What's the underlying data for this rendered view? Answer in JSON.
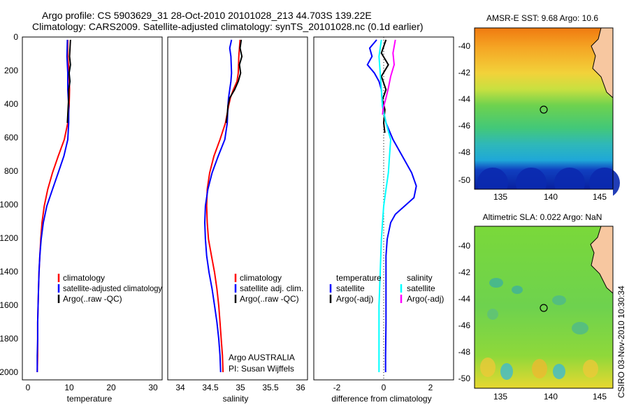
{
  "titles": {
    "line1": "Argo profile: CS 5903629_31 28-Oct-2010 20101028_213 44.703S 139.22E",
    "line2": "Climatology: CARS2009. Satellite-adjusted climatology: synTS_20101028.nc (0.1d earlier)"
  },
  "colors": {
    "climatology": "#ff0000",
    "satellite": "#0000ff",
    "argo": "#000000",
    "sat_salinity": "#00ffff",
    "argo_salinity": "#ff00ff"
  },
  "chart_data": [
    {
      "type": "line",
      "id": "temperature",
      "xlabel": "temperature",
      "xlim": [
        -1,
        31
      ],
      "xticks": [
        0,
        10,
        20,
        30
      ],
      "ylim": [
        2000,
        0
      ],
      "yticks": [
        0,
        200,
        400,
        600,
        800,
        1000,
        1200,
        1400,
        1600,
        1800,
        2000
      ],
      "legend_entries": [
        "climatology",
        "satellite-adjusted climatology",
        "Argo(..raw -QC)"
      ],
      "series": [
        {
          "name": "climatology",
          "color": "climatology",
          "points": [
            [
              9.4,
              0
            ],
            [
              9.4,
              100
            ],
            [
              9.7,
              200
            ],
            [
              9.8,
              300
            ],
            [
              9.7,
              400
            ],
            [
              9.4,
              500
            ],
            [
              8.6,
              600
            ],
            [
              7.2,
              700
            ],
            [
              5.9,
              800
            ],
            [
              4.8,
              900
            ],
            [
              4.0,
              1000
            ],
            [
              3.5,
              1100
            ],
            [
              3.2,
              1200
            ],
            [
              3.0,
              1300
            ],
            [
              2.8,
              1400
            ],
            [
              2.7,
              1500
            ],
            [
              2.6,
              1600
            ],
            [
              2.5,
              1700
            ],
            [
              2.5,
              1800
            ],
            [
              2.5,
              1900
            ],
            [
              2.4,
              2000
            ]
          ]
        },
        {
          "name": "satellite-adjusted climatology",
          "color": "satellite",
          "points": [
            [
              9.3,
              0
            ],
            [
              9.2,
              100
            ],
            [
              9.4,
              200
            ],
            [
              9.4,
              300
            ],
            [
              9.6,
              400
            ],
            [
              9.6,
              500
            ],
            [
              9.4,
              600
            ],
            [
              8.5,
              700
            ],
            [
              7.2,
              800
            ],
            [
              5.9,
              900
            ],
            [
              4.6,
              1000
            ],
            [
              3.8,
              1100
            ],
            [
              3.3,
              1200
            ],
            [
              3.0,
              1300
            ],
            [
              2.8,
              1400
            ],
            [
              2.7,
              1500
            ],
            [
              2.6,
              1600
            ],
            [
              2.5,
              1700
            ],
            [
              2.5,
              1800
            ],
            [
              2.4,
              1900
            ],
            [
              2.4,
              2000
            ]
          ]
        },
        {
          "name": "Argo(..raw -QC)",
          "color": "argo",
          "points": [
            [
              10.0,
              0
            ],
            [
              9.8,
              100
            ],
            [
              10.0,
              150
            ],
            [
              9.7,
              200
            ],
            [
              9.9,
              250
            ],
            [
              9.6,
              300
            ],
            [
              9.6,
              350
            ],
            [
              9.5,
              400
            ],
            [
              9.4,
              450
            ],
            [
              9.3,
              500
            ]
          ]
        }
      ]
    },
    {
      "type": "line",
      "id": "salinity",
      "xlabel": "salinity",
      "xlim": [
        33.8,
        36.1
      ],
      "xticks": [
        34,
        34.5,
        35,
        35.5,
        36
      ],
      "ylim": [
        2000,
        0
      ],
      "legend_entries": [
        "climatology",
        "satellite adj. clim.",
        "Argo(..raw -QC)"
      ],
      "annotation": [
        "Argo AUSTRALIA",
        "PI: Susan Wijffels"
      ],
      "series": [
        {
          "name": "climatology",
          "color": "climatology",
          "points": [
            [
              34.99,
              0
            ],
            [
              34.97,
              100
            ],
            [
              34.96,
              200
            ],
            [
              34.94,
              250
            ],
            [
              34.88,
              300
            ],
            [
              34.83,
              350
            ],
            [
              34.8,
              400
            ],
            [
              34.75,
              500
            ],
            [
              34.66,
              600
            ],
            [
              34.56,
              700
            ],
            [
              34.49,
              800
            ],
            [
              34.45,
              900
            ],
            [
              34.44,
              1000
            ],
            [
              34.45,
              1100
            ],
            [
              34.47,
              1200
            ],
            [
              34.52,
              1300
            ],
            [
              34.57,
              1400
            ],
            [
              34.61,
              1500
            ],
            [
              34.64,
              1600
            ],
            [
              34.66,
              1700
            ],
            [
              34.68,
              1800
            ],
            [
              34.7,
              1900
            ],
            [
              34.71,
              2000
            ]
          ]
        },
        {
          "name": "satellite adj. clim.",
          "color": "satellite",
          "points": [
            [
              34.85,
              0
            ],
            [
              34.82,
              50
            ],
            [
              34.84,
              100
            ],
            [
              34.85,
              200
            ],
            [
              34.84,
              250
            ],
            [
              34.82,
              300
            ],
            [
              34.8,
              350
            ],
            [
              34.79,
              400
            ],
            [
              34.78,
              500
            ],
            [
              34.74,
              600
            ],
            [
              34.63,
              700
            ],
            [
              34.53,
              800
            ],
            [
              34.46,
              900
            ],
            [
              34.42,
              1000
            ],
            [
              34.41,
              1100
            ],
            [
              34.42,
              1200
            ],
            [
              34.44,
              1300
            ],
            [
              34.48,
              1400
            ],
            [
              34.53,
              1500
            ],
            [
              34.57,
              1600
            ],
            [
              34.61,
              1700
            ],
            [
              34.64,
              1800
            ],
            [
              34.66,
              1900
            ],
            [
              34.67,
              2000
            ]
          ]
        },
        {
          "name": "Argo(..raw -QC)",
          "color": "argo",
          "points": [
            [
              35.01,
              0
            ],
            [
              34.99,
              50
            ],
            [
              35.02,
              100
            ],
            [
              34.98,
              150
            ],
            [
              35.0,
              200
            ],
            [
              34.96,
              250
            ],
            [
              34.9,
              300
            ],
            [
              34.82,
              350
            ],
            [
              34.79,
              400
            ],
            [
              34.78,
              450
            ],
            [
              34.76,
              500
            ]
          ]
        }
      ]
    },
    {
      "type": "line",
      "id": "difference",
      "xlabel": "difference from climatology",
      "xlim": [
        -3,
        3
      ],
      "xticks": [
        -2,
        0,
        2
      ],
      "ylim": [
        2000,
        0
      ],
      "legend_left": {
        "header": "temperature",
        "entries": [
          "satellite",
          "Argo(-adj)"
        ]
      },
      "legend_right": {
        "header": "salinity",
        "entries": [
          "satellite",
          "Argo(-adj)"
        ]
      },
      "series": [
        {
          "name": "temperature satellite",
          "color": "satellite",
          "points": [
            [
              -0.3,
              0
            ],
            [
              -0.6,
              50
            ],
            [
              -0.5,
              100
            ],
            [
              -0.7,
              150
            ],
            [
              -0.4,
              200
            ],
            [
              -0.2,
              250
            ],
            [
              -0.1,
              300
            ],
            [
              -0.05,
              400
            ],
            [
              0.1,
              500
            ],
            [
              0.4,
              600
            ],
            [
              0.8,
              700
            ],
            [
              1.2,
              800
            ],
            [
              1.4,
              880
            ],
            [
              1.3,
              950
            ],
            [
              0.9,
              1000
            ],
            [
              0.5,
              1050
            ],
            [
              0.3,
              1100
            ],
            [
              0.15,
              1200
            ],
            [
              0.1,
              1300
            ],
            [
              0.1,
              1500
            ],
            [
              0.1,
              1700
            ],
            [
              0.08,
              1900
            ],
            [
              0.08,
              2000
            ]
          ]
        },
        {
          "name": "temperature Argo(-adj)",
          "color": "argo",
          "points": [
            [
              0.1,
              0
            ],
            [
              -0.1,
              80
            ],
            [
              0.2,
              150
            ],
            [
              -0.1,
              220
            ],
            [
              0.1,
              300
            ],
            [
              -0.05,
              360
            ],
            [
              0.05,
              420
            ],
            [
              0.0,
              500
            ],
            [
              0.05,
              560
            ]
          ]
        },
        {
          "name": "salinity satellite",
          "color": "sat_salinity",
          "points": [
            [
              -0.1,
              0
            ],
            [
              -0.2,
              100
            ],
            [
              -0.15,
              200
            ],
            [
              -0.1,
              300
            ],
            [
              -0.05,
              400
            ],
            [
              0.1,
              500
            ],
            [
              0.3,
              600
            ],
            [
              0.25,
              700
            ],
            [
              0.2,
              800
            ],
            [
              0.1,
              900
            ],
            [
              0.0,
              1000
            ],
            [
              -0.05,
              1100
            ],
            [
              -0.1,
              1200
            ],
            [
              -0.15,
              1400
            ],
            [
              -0.2,
              1600
            ],
            [
              -0.2,
              1800
            ],
            [
              -0.2,
              2000
            ]
          ]
        },
        {
          "name": "salinity Argo(-adj)",
          "color": "argo_salinity",
          "points": [
            [
              0.5,
              0
            ],
            [
              0.4,
              80
            ],
            [
              0.45,
              150
            ],
            [
              0.3,
              220
            ],
            [
              0.2,
              290
            ],
            [
              0.1,
              350
            ],
            [
              0.0,
              400
            ],
            [
              -0.05,
              450
            ]
          ]
        }
      ]
    },
    {
      "type": "heatmap",
      "id": "sst_map",
      "title": "AMSR-E SST: 9.68 Argo: 10.6",
      "xticks": [
        135,
        140,
        145
      ],
      "yticks": [
        -40,
        -42,
        -44,
        -46,
        -48,
        -50
      ]
    },
    {
      "type": "heatmap",
      "id": "sla_map",
      "title": "Altimetric SLA: 0.022 Argo: NaN",
      "xticks": [
        135,
        140,
        145
      ],
      "yticks": [
        -40,
        -42,
        -44,
        -46,
        -48,
        -50
      ]
    }
  ],
  "credit": "CSIRO 03-Nov-2010 10:30:34"
}
